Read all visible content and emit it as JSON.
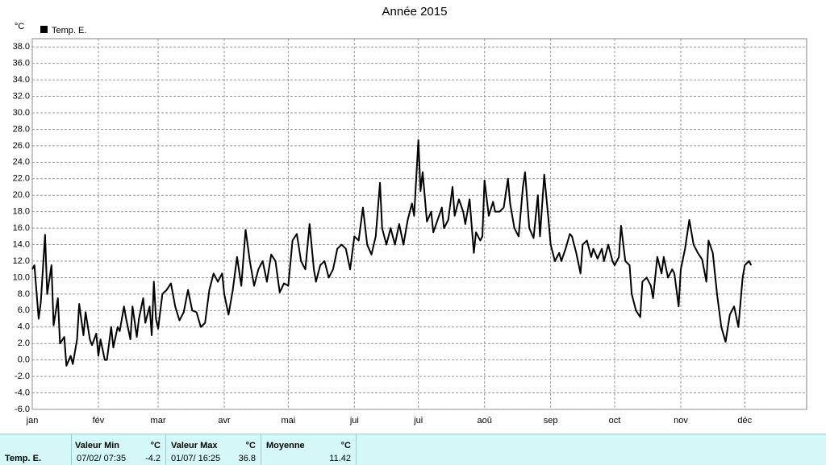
{
  "chart_data": {
    "type": "line",
    "title": "Année 2015",
    "y_unit": "°C",
    "ylim": [
      -6,
      39
    ],
    "yticks": [
      {
        "value": -6,
        "label": "-6.0"
      },
      {
        "value": -4,
        "label": "-4.0"
      },
      {
        "value": -2,
        "label": "-2.0"
      },
      {
        "value": 0,
        "label": "0.0"
      },
      {
        "value": 2,
        "label": "2.0"
      },
      {
        "value": 4,
        "label": "4.0"
      },
      {
        "value": 6,
        "label": "6.0"
      },
      {
        "value": 8,
        "label": "8.0"
      },
      {
        "value": 10,
        "label": "10.0"
      },
      {
        "value": 12,
        "label": "12.0"
      },
      {
        "value": 14,
        "label": "14.0"
      },
      {
        "value": 16,
        "label": "16.0"
      },
      {
        "value": 18,
        "label": "18.0"
      },
      {
        "value": 20,
        "label": "20.0"
      },
      {
        "value": 22,
        "label": "22.0"
      },
      {
        "value": 24,
        "label": "24.0"
      },
      {
        "value": 26,
        "label": "26.0"
      },
      {
        "value": 28,
        "label": "28.0"
      },
      {
        "value": 30,
        "label": "30.0"
      },
      {
        "value": 32,
        "label": "32.0"
      },
      {
        "value": 34,
        "label": "34.0"
      },
      {
        "value": 36,
        "label": "36.0"
      },
      {
        "value": 38,
        "label": "38.0"
      }
    ],
    "xlim": [
      0,
      363
    ],
    "xticks": [
      {
        "value": 0,
        "label": "jan"
      },
      {
        "value": 31,
        "label": "fév"
      },
      {
        "value": 59,
        "label": "mar"
      },
      {
        "value": 90,
        "label": "avr"
      },
      {
        "value": 120,
        "label": "mai"
      },
      {
        "value": 151,
        "label": "jui"
      },
      {
        "value": 181,
        "label": "jui"
      },
      {
        "value": 212,
        "label": "aoû"
      },
      {
        "value": 243,
        "label": "sep"
      },
      {
        "value": 273,
        "label": "oct"
      },
      {
        "value": 304,
        "label": "nov"
      },
      {
        "value": 334,
        "label": "déc"
      }
    ],
    "grid": true,
    "x": [
      0,
      1,
      3,
      4,
      6,
      7,
      9,
      10,
      12,
      13,
      15,
      16,
      18,
      19,
      21,
      22,
      24,
      25,
      27,
      28,
      30,
      31,
      32,
      34,
      35,
      37,
      38,
      40,
      41,
      43,
      44,
      46,
      47,
      49,
      50,
      52,
      53,
      55,
      56,
      57,
      58,
      59,
      61,
      63,
      65,
      67,
      69,
      71,
      73,
      75,
      77,
      79,
      81,
      83,
      85,
      87,
      89,
      90,
      92,
      94,
      96,
      98,
      100,
      102,
      104,
      106,
      108,
      110,
      112,
      114,
      116,
      118,
      120,
      122,
      124,
      126,
      128,
      130,
      132,
      133,
      135,
      137,
      139,
      141,
      143,
      145,
      147,
      149,
      150,
      151,
      153,
      155,
      157,
      159,
      161,
      163,
      164,
      166,
      168,
      170,
      172,
      174,
      176,
      178,
      179,
      181,
      182,
      183,
      185,
      187,
      188,
      190,
      192,
      193,
      195,
      197,
      198,
      200,
      202,
      203,
      205,
      207,
      208,
      210,
      211,
      212,
      214,
      216,
      217,
      219,
      221,
      223,
      224,
      226,
      228,
      230,
      231,
      233,
      235,
      237,
      238,
      240,
      242,
      243,
      245,
      247,
      248,
      250,
      252,
      253,
      255,
      257,
      258,
      260,
      262,
      263,
      265,
      267,
      268,
      270,
      272,
      273,
      275,
      276,
      278,
      280,
      281,
      283,
      285,
      286,
      288,
      290,
      291,
      293,
      295,
      296,
      298,
      300,
      301,
      303,
      304,
      306,
      308,
      310,
      312,
      314,
      316,
      317,
      319,
      321,
      323,
      325,
      327,
      329,
      331,
      332,
      333,
      334,
      336,
      337
    ],
    "series": [
      {
        "name": "Temp. E.",
        "color": "#000000",
        "values": [
          11,
          11.5,
          5,
          7,
          15.2,
          8,
          11.5,
          4.2,
          7.5,
          2.0,
          2.8,
          -0.7,
          0.5,
          -0.5,
          2.5,
          6.8,
          3,
          5.8,
          2.5,
          1.8,
          3.2,
          0.5,
          2.5,
          0,
          0,
          4.0,
          1.5,
          4,
          3.5,
          6.5,
          5,
          2.5,
          6.5,
          2.8,
          5,
          7.5,
          4.5,
          6.5,
          3.0,
          9.5,
          5,
          3.8,
          8,
          8.5,
          9.3,
          6.5,
          4.8,
          5.8,
          8.5,
          6,
          5.8,
          4.0,
          4.5,
          8.5,
          10.5,
          9.5,
          10.5,
          8,
          5.5,
          8.5,
          12.5,
          9.0,
          15.8,
          12,
          9,
          11,
          12,
          9.5,
          12.8,
          12,
          8.2,
          9.3,
          9,
          14.5,
          15.3,
          12,
          11,
          16.5,
          11,
          9.5,
          11.5,
          12,
          10,
          11,
          13.5,
          14,
          13.5,
          11,
          13,
          15,
          14.5,
          18.5,
          14,
          12.8,
          15,
          21.5,
          16,
          14,
          16,
          14,
          16.5,
          14,
          17,
          19,
          17.5,
          26.7,
          20.5,
          22.8,
          16.8,
          18,
          15.5,
          17,
          18.5,
          16,
          17,
          21,
          17.5,
          19.5,
          18,
          16.5,
          19.5,
          13,
          15.5,
          14.5,
          15,
          21.8,
          17.5,
          19.2,
          18,
          18,
          18.5,
          22,
          19,
          16,
          15,
          21,
          22.8,
          16,
          14.8,
          20,
          15,
          22.5,
          17,
          14,
          12,
          13,
          12,
          13.5,
          15.3,
          15,
          13,
          10.5,
          14,
          14.5,
          12.5,
          13.5,
          12.3,
          13.5,
          12,
          14,
          12,
          11.5,
          12.5,
          16.3,
          12,
          11.5,
          8,
          6,
          5.2,
          9.5,
          10,
          9,
          7.5,
          12.5,
          10.5,
          12.5,
          10,
          11,
          10.5,
          6.5,
          11,
          13.5,
          17,
          14,
          13,
          12.2,
          9.5,
          14.5,
          13,
          8,
          4,
          2.2,
          5.5,
          6.5,
          4,
          7,
          10,
          11.5,
          12,
          11.5
        ]
      }
    ]
  },
  "stats": {
    "series_label": "Temp. E.",
    "min": {
      "header": "Valeur Min",
      "unit": "°C",
      "date": "07/02/ 07:35",
      "value": "-4.2"
    },
    "max": {
      "header": "Valeur Max",
      "unit": "°C",
      "date": "01/07/ 16:25",
      "value": "36.8"
    },
    "mean": {
      "header": "Moyenne",
      "unit": "°C",
      "value": "11.42"
    }
  }
}
